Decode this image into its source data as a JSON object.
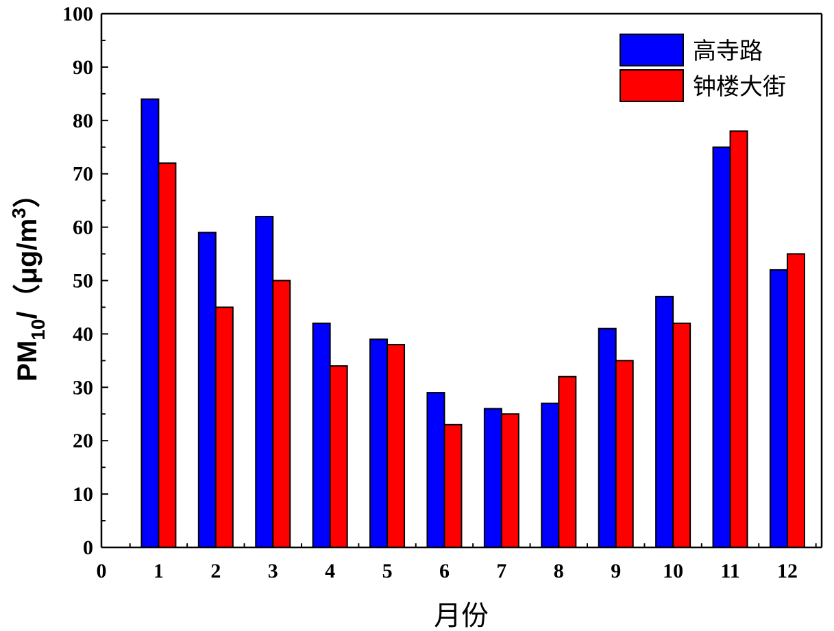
{
  "chart_data": {
    "type": "bar",
    "title": "",
    "categories": [
      "1",
      "2",
      "3",
      "4",
      "5",
      "6",
      "7",
      "8",
      "9",
      "10",
      "11",
      "12"
    ],
    "x_ticks": [
      "0",
      "1",
      "2",
      "3",
      "4",
      "5",
      "6",
      "7",
      "8",
      "9",
      "10",
      "11",
      "12"
    ],
    "series": [
      {
        "name": "高寺路",
        "color": "#0000ff",
        "values": [
          84,
          59,
          62,
          42,
          39,
          29,
          26,
          27,
          41,
          47,
          75,
          52
        ]
      },
      {
        "name": "钟楼大街",
        "color": "#ff0000",
        "values": [
          72,
          45,
          50,
          34,
          38,
          23,
          25,
          32,
          35,
          42,
          78,
          55
        ]
      }
    ],
    "xlabel": "月份",
    "ylabel": {
      "main": "PM",
      "subscript": "10",
      "unit_prefix": "/（μg/m",
      "superscript": "3",
      "unit_suffix": "）"
    },
    "ylim": [
      0,
      100
    ],
    "xlim": [
      0,
      12.6
    ],
    "y_ticks": [
      0,
      10,
      20,
      30,
      40,
      50,
      60,
      70,
      80,
      90,
      100
    ],
    "legend_position": "top-right",
    "grid": false
  }
}
